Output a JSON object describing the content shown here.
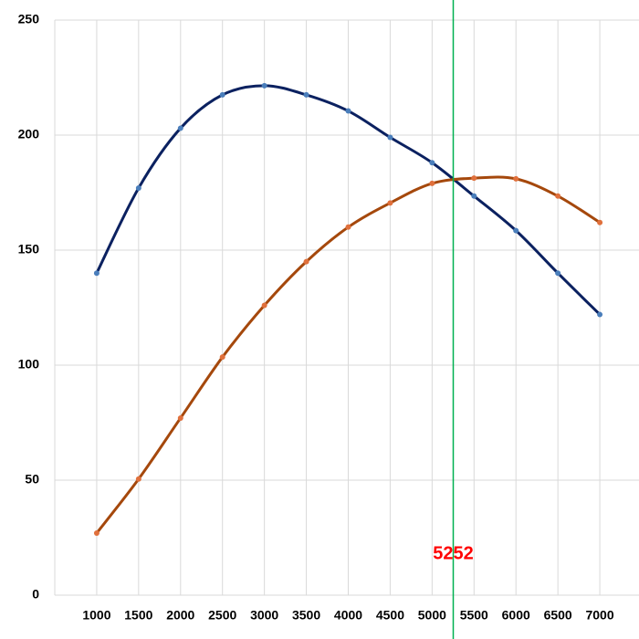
{
  "chart_data": {
    "type": "line",
    "x": [
      1000,
      1500,
      2000,
      2500,
      3000,
      3500,
      4000,
      4500,
      5000,
      5500,
      6000,
      6500,
      7000
    ],
    "series": [
      {
        "color": "#0b2160",
        "marker_color": "#4a7ebb",
        "values": [
          140,
          177,
          203,
          217.5,
          221.5,
          217.5,
          210.5,
          199,
          188,
          173.5,
          158.5,
          140,
          122
        ]
      },
      {
        "color": "#a5480c",
        "marker_color": "#e0703c",
        "values": [
          27,
          50.5,
          77,
          103.5,
          126,
          145,
          160,
          170.5,
          179,
          181.3,
          181,
          173.5,
          162
        ]
      }
    ],
    "xlim": [
      500,
      7500
    ],
    "xticks": [
      1000,
      1500,
      2000,
      2500,
      3000,
      3500,
      4000,
      4500,
      5000,
      5500,
      6000,
      6500,
      7000
    ],
    "ylim": [
      0,
      250
    ],
    "yticks": [
      0,
      50,
      100,
      150,
      200,
      250
    ],
    "grid": true,
    "smooth": true,
    "vline": 5252,
    "vline_color": "#00b050",
    "vline_label_color": "#ff0000"
  }
}
